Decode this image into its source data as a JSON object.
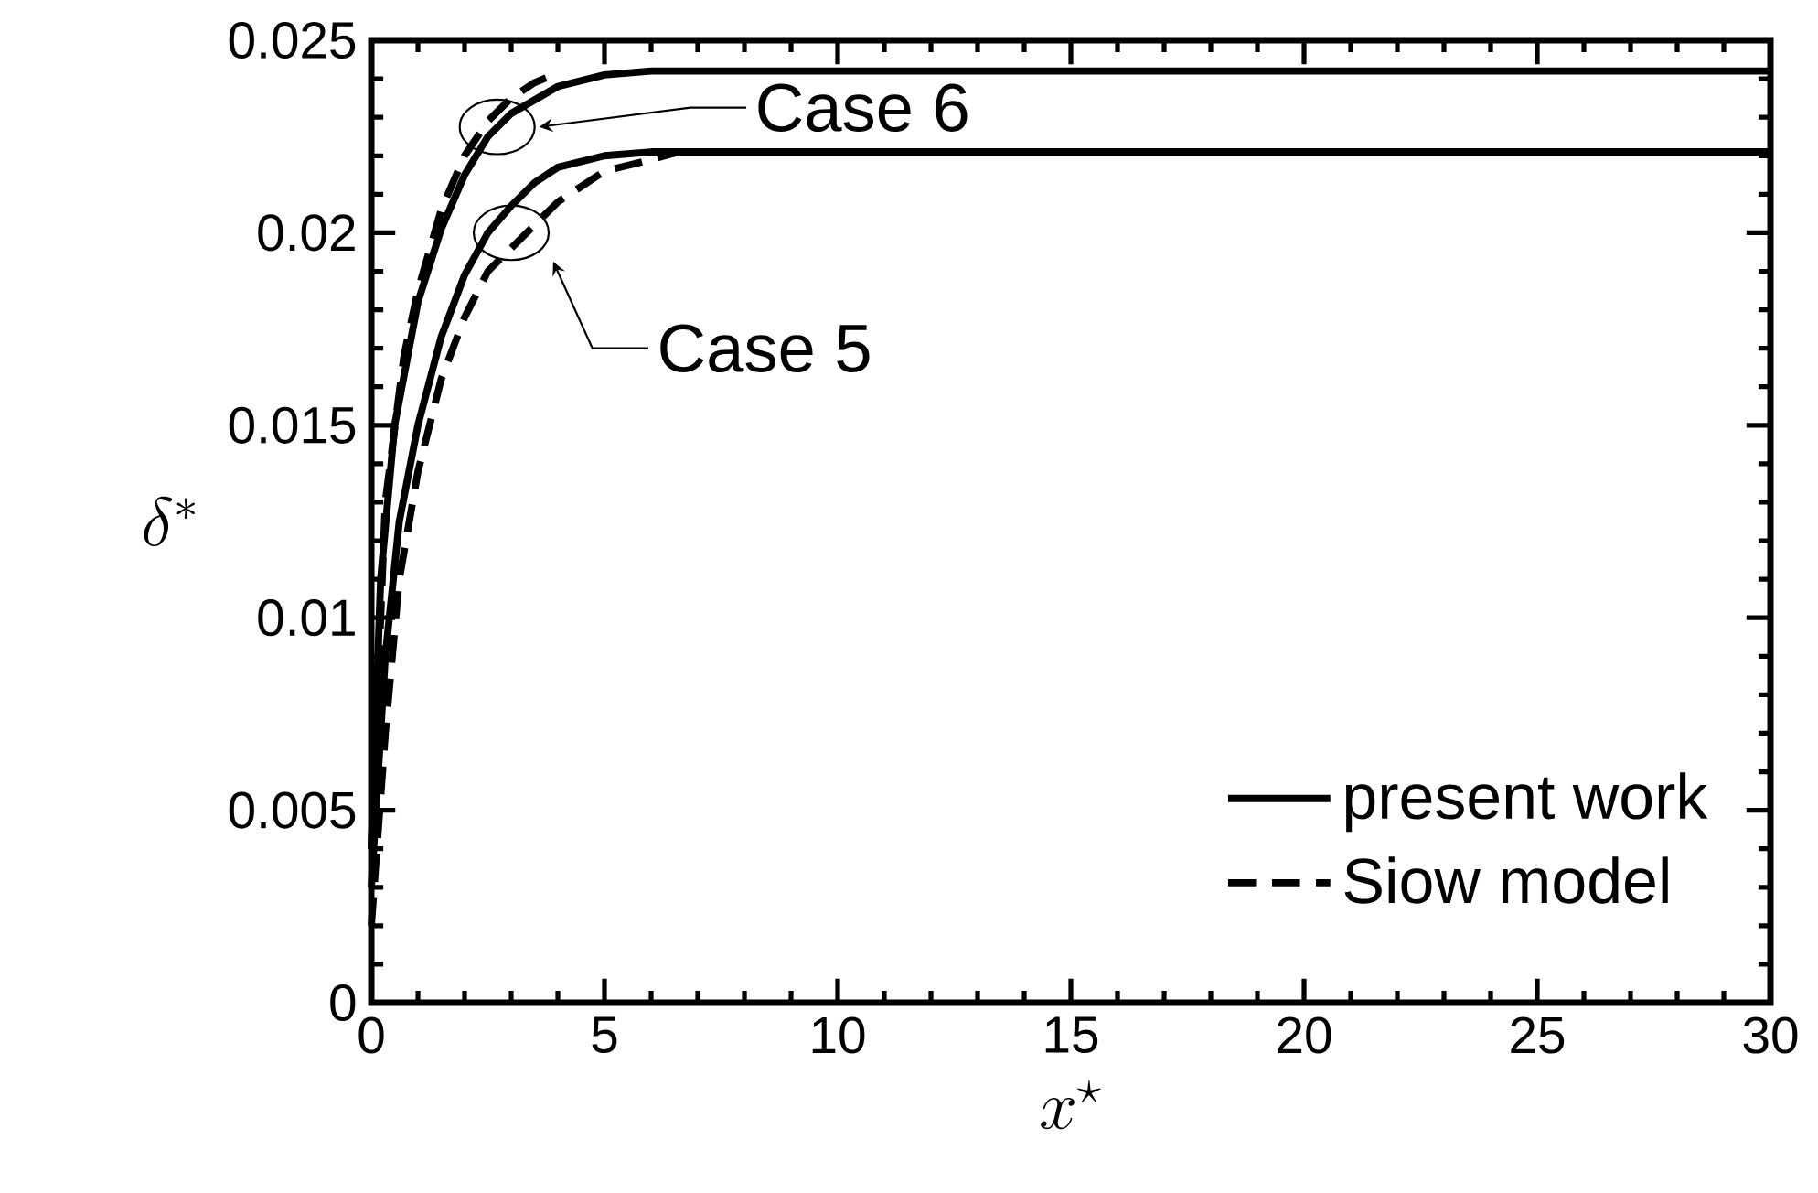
{
  "chart_data": {
    "type": "line",
    "xlabel": "x^\\star",
    "ylabel": "\\delta^*",
    "xlim": [
      0,
      30
    ],
    "ylim": [
      0,
      0.025
    ],
    "xticks": [
      0,
      5,
      10,
      15,
      20,
      25,
      30
    ],
    "yticks": [
      0,
      0.005,
      0.01,
      0.015,
      0.02,
      0.025
    ],
    "legend": "bottom right",
    "grid": false,
    "marker": "none",
    "series": [
      {
        "name": "present work",
        "color": "#000000",
        "line_style": "solid",
        "x": [
          0,
          0.2,
          0.5,
          1,
          1.5,
          2,
          2.5,
          3,
          4,
          5,
          6,
          30
        ],
        "values": [
          0.004,
          0.011,
          0.015,
          0.0182,
          0.0201,
          0.0215,
          0.0225,
          0.0231,
          0.0238,
          0.0241,
          0.0242,
          0.0242
        ]
      },
      {
        "name": "Siow model",
        "color": "#000000",
        "line_style": "dashed",
        "x": [
          0,
          0.3,
          0.7,
          1,
          1.5,
          2,
          2.5,
          3,
          3.5,
          3.9
        ],
        "values": [
          0.004,
          0.013,
          0.0168,
          0.0185,
          0.0206,
          0.022,
          0.0229,
          0.0235,
          0.0239,
          0.0241
        ]
      },
      {
        "color": "#000000",
        "line_style": "solid",
        "x": [
          0,
          0.3,
          0.6,
          1,
          1.5,
          2,
          2.5,
          3,
          3.5,
          4,
          5,
          6,
          30
        ],
        "values": [
          0.003,
          0.009,
          0.0125,
          0.015,
          0.0173,
          0.0189,
          0.02,
          0.0207,
          0.0213,
          0.0217,
          0.022,
          0.0221,
          0.0221
        ]
      },
      {
        "color": "#000000",
        "line_style": "dashed",
        "x": [
          0,
          0.3,
          0.6,
          1,
          1.5,
          2,
          2.5,
          3,
          4,
          5,
          6,
          6.6
        ],
        "values": [
          0.002,
          0.007,
          0.011,
          0.0138,
          0.0162,
          0.0178,
          0.019,
          0.0196,
          0.0208,
          0.0216,
          0.0219,
          0.0221
        ]
      }
    ],
    "annotations": [
      "Case 6",
      "Case 5"
    ]
  }
}
